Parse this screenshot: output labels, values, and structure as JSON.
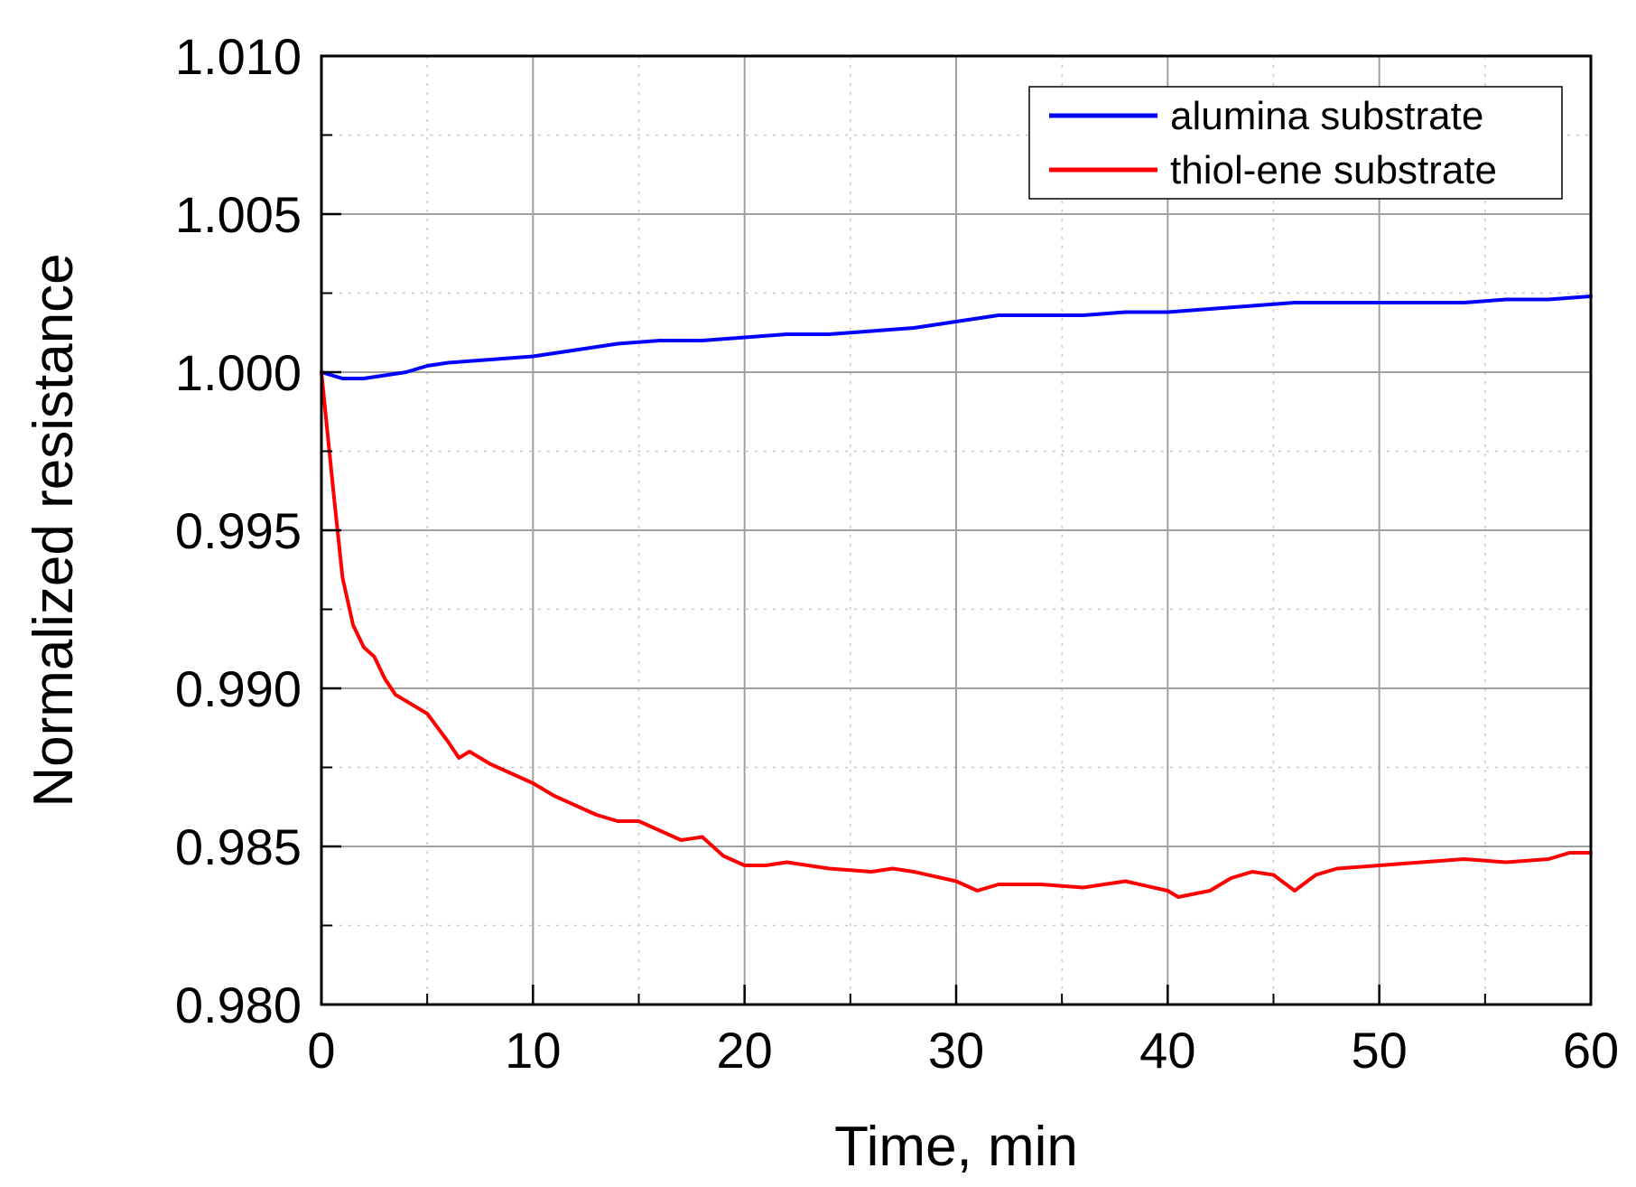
{
  "chart_data": {
    "type": "line",
    "title": "",
    "xlabel": "Time, min",
    "ylabel": "Normalized resistance",
    "xlim": [
      0,
      60
    ],
    "ylim": [
      0.98,
      1.01
    ],
    "x_ticks": [
      0,
      10,
      20,
      30,
      40,
      50,
      60
    ],
    "x_tick_labels": [
      "0",
      "10",
      "20",
      "30",
      "40",
      "50",
      "60"
    ],
    "y_ticks": [
      0.98,
      0.985,
      0.99,
      0.995,
      1.0,
      1.005,
      1.01
    ],
    "y_tick_labels": [
      "0.980",
      "0.985",
      "0.990",
      "0.995",
      "1.000",
      "1.005",
      "1.010"
    ],
    "grid": true,
    "minor_grid": true,
    "legend_position": "top-right",
    "series": [
      {
        "name": "alumina substrate",
        "color": "#0000ff",
        "x": [
          0,
          1,
          2,
          3,
          4,
          5,
          6,
          8,
          10,
          12,
          14,
          16,
          18,
          20,
          22,
          24,
          26,
          28,
          30,
          31,
          32,
          34,
          36,
          38,
          40,
          42,
          44,
          46,
          48,
          50,
          52,
          54,
          56,
          58,
          60
        ],
        "y": [
          1.0,
          0.9998,
          0.9998,
          0.9999,
          1.0,
          1.0002,
          1.0003,
          1.0004,
          1.0005,
          1.0007,
          1.0009,
          1.001,
          1.001,
          1.0011,
          1.0012,
          1.0012,
          1.0013,
          1.0014,
          1.0016,
          1.0017,
          1.0018,
          1.0018,
          1.0018,
          1.0019,
          1.0019,
          1.002,
          1.0021,
          1.0022,
          1.0022,
          1.0022,
          1.0022,
          1.0022,
          1.0023,
          1.0023,
          1.0024
        ]
      },
      {
        "name": "thiol-ene substrate",
        "color": "#ff0000",
        "x": [
          0,
          0.3,
          0.6,
          1,
          1.5,
          2,
          2.5,
          3,
          3.5,
          4,
          5,
          6,
          6.5,
          7,
          8,
          9,
          10,
          11,
          12,
          13,
          14,
          15,
          16,
          17,
          18,
          19,
          20,
          21,
          22,
          24,
          26,
          27,
          28,
          30,
          31,
          32,
          34,
          36,
          38,
          40,
          40.5,
          42,
          43,
          44,
          45,
          46,
          47,
          48,
          50,
          52,
          54,
          56,
          58,
          59,
          60
        ],
        "y": [
          1.0,
          0.998,
          0.996,
          0.9935,
          0.992,
          0.9913,
          0.991,
          0.9903,
          0.9898,
          0.9896,
          0.9892,
          0.9883,
          0.9878,
          0.988,
          0.9876,
          0.9873,
          0.987,
          0.9866,
          0.9863,
          0.986,
          0.9858,
          0.9858,
          0.9855,
          0.9852,
          0.9853,
          0.9847,
          0.9844,
          0.9844,
          0.9845,
          0.9843,
          0.9842,
          0.9843,
          0.9842,
          0.9839,
          0.9836,
          0.9838,
          0.9838,
          0.9837,
          0.9839,
          0.9836,
          0.9834,
          0.9836,
          0.984,
          0.9842,
          0.9841,
          0.9836,
          0.9841,
          0.9843,
          0.9844,
          0.9845,
          0.9846,
          0.9845,
          0.9846,
          0.9848,
          0.9848
        ]
      }
    ]
  }
}
